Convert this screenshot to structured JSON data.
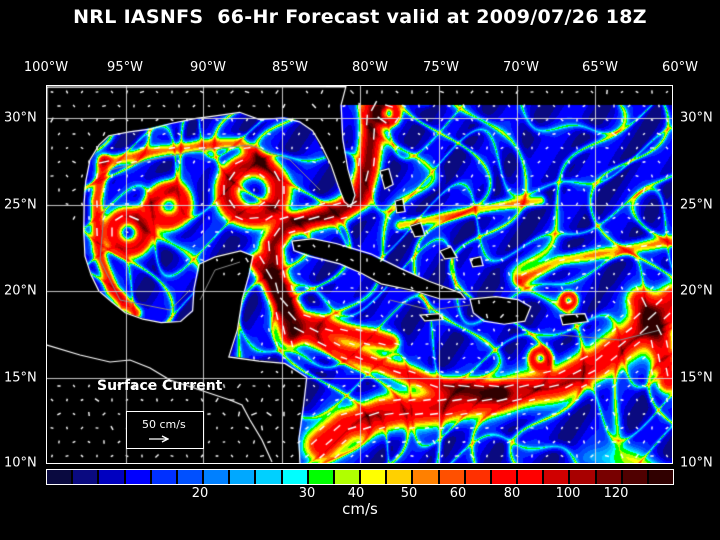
{
  "title": "NRL IASNFS  66-Hr Forecast valid at 2009/07/26 18Z",
  "lon_labels": [
    "100°W",
    "95°W",
    "90°W",
    "85°W",
    "80°W",
    "75°W",
    "70°W",
    "65°W",
    "60°W"
  ],
  "lat_labels": [
    "30°N",
    "25°N",
    "20°N",
    "15°N",
    "10°N"
  ],
  "legend": {
    "title": "Surface Current",
    "scale_label": "50 cm/s",
    "arrow_icon": "arrow-right-icon"
  },
  "colorbar": {
    "unit": "cm/s",
    "labels": [
      "20",
      "30",
      "40",
      "50",
      "60",
      "80",
      "100",
      "120"
    ],
    "colors": [
      "#0a0a40",
      "#0a0a80",
      "#0000c0",
      "#0000ff",
      "#0030ff",
      "#0050ff",
      "#0080ff",
      "#00a8ff",
      "#00d0ff",
      "#00ffff",
      "#00ff00",
      "#b0ff00",
      "#ffff00",
      "#ffd000",
      "#ff8000",
      "#ff5000",
      "#ff3000",
      "#ff0000",
      "#ff0000",
      "#d00000",
      "#a80000",
      "#780000",
      "#500000",
      "#300000"
    ]
  }
}
